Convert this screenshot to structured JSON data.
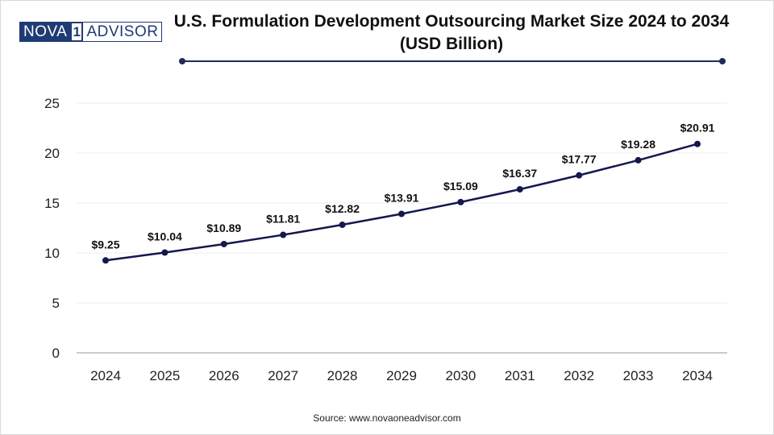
{
  "brand": {
    "logo_left": "NOVA",
    "logo_mark": "1",
    "logo_right": "ADVISOR",
    "color": "#1f3b73"
  },
  "title": "U.S. Formulation Development Outsourcing Market Size 2024 to 2034 (USD Billion)",
  "source": "Source: www.novaoneadvisor.com",
  "chart_data": {
    "type": "line",
    "categories": [
      "2024",
      "2025",
      "2026",
      "2027",
      "2028",
      "2029",
      "2030",
      "2031",
      "2032",
      "2033",
      "2034"
    ],
    "values": [
      9.25,
      10.04,
      10.89,
      11.81,
      12.82,
      13.91,
      15.09,
      16.37,
      17.77,
      19.28,
      20.91
    ],
    "data_labels": [
      "$9.25",
      "$10.04",
      "$10.89",
      "$11.81",
      "$12.82",
      "$13.91",
      "$15.09",
      "$16.37",
      "$17.77",
      "$19.28",
      "$20.91"
    ],
    "ylim": [
      0,
      25
    ],
    "yticks": [
      "0",
      "5",
      "10",
      "15",
      "20",
      "25"
    ],
    "grid": true,
    "line_color": "#15174f",
    "xlabel": "",
    "ylabel": ""
  }
}
